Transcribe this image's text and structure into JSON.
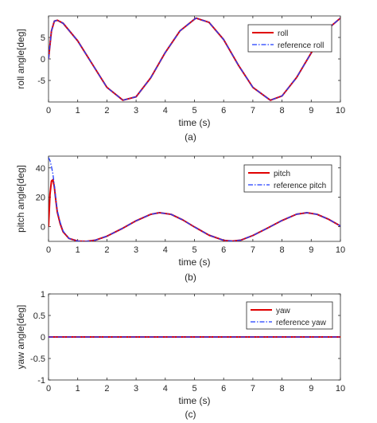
{
  "chart_data": [
    {
      "type": "line",
      "caption": "(a)",
      "xlabel": "time (s)",
      "ylabel": "roll angle[deg]",
      "xlim": [
        0,
        10
      ],
      "ylim": [
        -10,
        10
      ],
      "xticks": [
        0,
        1,
        2,
        3,
        4,
        5,
        6,
        7,
        8,
        9,
        10
      ],
      "yticks": [
        -5,
        0,
        5
      ],
      "grid": false,
      "legend_position": "top-right",
      "x": [
        0,
        0.1,
        0.2,
        0.3,
        0.5,
        1.0,
        1.5,
        2.0,
        2.55,
        3.0,
        3.5,
        4.0,
        4.5,
        5.05,
        5.5,
        6.0,
        6.5,
        7.0,
        7.6,
        8.0,
        8.5,
        9.0,
        9.5,
        10.0
      ],
      "series": [
        {
          "name": "roll",
          "color": "#e00000",
          "style": "solid",
          "values": [
            0,
            6.5,
            8.8,
            9.0,
            8.3,
            4.2,
            -1.2,
            -6.6,
            -9.6,
            -8.8,
            -4.4,
            1.5,
            6.5,
            9.5,
            8.5,
            4.5,
            -1.4,
            -6.6,
            -9.6,
            -8.6,
            -4.3,
            1.4,
            6.6,
            9.5
          ]
        },
        {
          "name": "reference roll",
          "color": "#1f3cff",
          "style": "dashdot",
          "values": [
            0,
            6.5,
            8.8,
            9.0,
            8.3,
            4.2,
            -1.2,
            -6.6,
            -9.6,
            -8.8,
            -4.4,
            1.5,
            6.5,
            9.5,
            8.5,
            4.5,
            -1.4,
            -6.6,
            -9.6,
            -8.6,
            -4.3,
            1.4,
            6.6,
            9.5
          ]
        }
      ]
    },
    {
      "type": "line",
      "caption": "(b)",
      "xlabel": "time (s)",
      "ylabel": "pitch angle[deg]",
      "xlim": [
        0,
        10
      ],
      "ylim": [
        -10,
        48
      ],
      "xticks": [
        0,
        1,
        2,
        3,
        4,
        5,
        6,
        7,
        8,
        9,
        10
      ],
      "yticks": [
        0,
        20,
        40
      ],
      "grid": false,
      "legend_position": "top-right",
      "series": [
        {
          "name": "pitch",
          "color": "#e00000",
          "style": "solid",
          "x": [
            0,
            0.05,
            0.1,
            0.15,
            0.2,
            0.25,
            0.3,
            0.4,
            0.5,
            0.7,
            1.0,
            1.3,
            1.6,
            2.0,
            2.5,
            3.0,
            3.5,
            3.8,
            4.2,
            4.6,
            5.0,
            5.5,
            6.0,
            6.3,
            6.6,
            7.0,
            7.5,
            8.0,
            8.5,
            8.85,
            9.2,
            9.6,
            10.0
          ],
          "values": [
            0,
            22,
            31,
            32,
            27,
            18,
            10,
            2,
            -3.5,
            -8,
            -9.8,
            -10,
            -9.2,
            -6.5,
            -1.5,
            4.0,
            8.4,
            9.5,
            8.4,
            4.6,
            -0.2,
            -5.8,
            -9.3,
            -9.8,
            -9.1,
            -6.0,
            -1.0,
            4.2,
            8.5,
            9.5,
            8.4,
            5.0,
            0.5
          ]
        },
        {
          "name": "reference pitch",
          "color": "#1f3cff",
          "style": "dashdot",
          "x": [
            0,
            0.05,
            0.1,
            0.15,
            0.2,
            0.25,
            0.3,
            0.4,
            0.5,
            0.7,
            1.0,
            1.3,
            1.6,
            2.0,
            2.5,
            3.0,
            3.5,
            3.8,
            4.2,
            4.6,
            5.0,
            5.5,
            6.0,
            6.3,
            6.6,
            7.0,
            7.5,
            8.0,
            8.5,
            8.85,
            9.2,
            9.6,
            10.0
          ],
          "values": [
            47,
            45,
            41,
            36,
            28,
            19,
            11,
            3,
            -3,
            -8,
            -9.8,
            -10,
            -9.2,
            -6.5,
            -1.5,
            4.0,
            8.4,
            9.5,
            8.4,
            4.6,
            -0.2,
            -5.8,
            -9.3,
            -9.8,
            -9.1,
            -6.0,
            -1.0,
            4.2,
            8.5,
            9.5,
            8.4,
            5.0,
            0.5
          ]
        }
      ]
    },
    {
      "type": "line",
      "caption": "(c)",
      "xlabel": "time (s)",
      "ylabel": "yaw angle[deg]",
      "xlim": [
        0,
        10
      ],
      "ylim": [
        -1,
        1
      ],
      "xticks": [
        0,
        1,
        2,
        3,
        4,
        5,
        6,
        7,
        8,
        9,
        10
      ],
      "yticks": [
        -1,
        -0.5,
        0,
        0.5,
        1
      ],
      "grid": false,
      "legend_position": "top-right",
      "x": [
        0,
        10
      ],
      "series": [
        {
          "name": "yaw",
          "color": "#e00000",
          "style": "solid",
          "values": [
            0,
            0
          ]
        },
        {
          "name": "reference yaw",
          "color": "#1f3cff",
          "style": "dashdot",
          "values": [
            0,
            0
          ]
        }
      ]
    }
  ]
}
